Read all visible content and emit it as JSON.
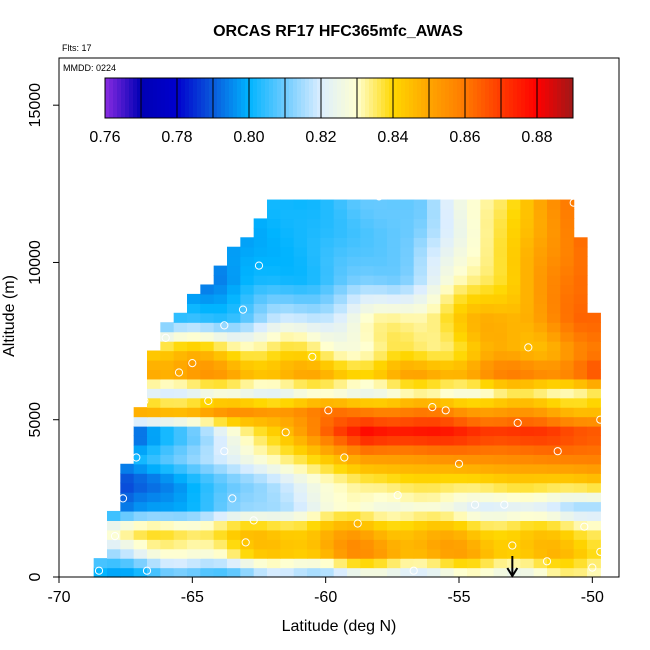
{
  "chart_data": {
    "type": "heatmap",
    "title": "ORCAS RF17 HFC365mfc_AWAS",
    "xlabel": "Latitude (deg N)",
    "ylabel": "Altitude (m)",
    "xlim": [
      -70,
      -49
    ],
    "ylim": [
      0,
      16500
    ],
    "x_ticks": [
      -70,
      -65,
      -60,
      -55,
      -50
    ],
    "y_ticks": [
      0,
      5000,
      10000,
      15000
    ],
    "annotations": {
      "flights": "Flts: 17",
      "date": "MMDD: 0224"
    },
    "colorbar": {
      "range": [
        0.76,
        0.89
      ],
      "ticks": [
        0.76,
        0.78,
        0.8,
        0.82,
        0.84,
        0.86,
        0.88
      ],
      "stops": [
        [
          0.76,
          "#8a2be2"
        ],
        [
          0.77,
          "#0000b4"
        ],
        [
          0.78,
          "#0000cd"
        ],
        [
          0.79,
          "#0a5adc"
        ],
        [
          0.8,
          "#00b4ff"
        ],
        [
          0.81,
          "#6ecbff"
        ],
        [
          0.82,
          "#dceeff"
        ],
        [
          0.83,
          "#ffffd0"
        ],
        [
          0.84,
          "#ffd700"
        ],
        [
          0.85,
          "#ffa500"
        ],
        [
          0.86,
          "#ff7a00"
        ],
        [
          0.87,
          "#ff3a00"
        ],
        [
          0.88,
          "#ff0000"
        ],
        [
          0.89,
          "#a01818"
        ]
      ]
    },
    "field": {
      "lat_range": [
        -68.7,
        -49.6
      ],
      "alt_top": 12000,
      "grid_lat_step": 0.5,
      "grid_alt_step": 300,
      "left_edge": [
        [
          0,
          -68.7
        ],
        [
          2000,
          -68.0
        ],
        [
          4000,
          -67.3
        ],
        [
          6000,
          -66.8
        ],
        [
          7700,
          -66.3
        ],
        [
          9500,
          -64.2
        ],
        [
          12000,
          -62.0
        ]
      ],
      "right_edge": [
        [
          0,
          -49.6
        ],
        [
          5000,
          -49.7
        ],
        [
          9000,
          -50.0
        ],
        [
          12000,
          -50.7
        ]
      ],
      "bands": [
        {
          "alt": 12000,
          "west": 0.8,
          "mid": 0.812,
          "east": 0.86
        },
        {
          "alt": 11000,
          "west": 0.798,
          "mid": 0.81,
          "east": 0.862
        },
        {
          "alt": 9500,
          "west": 0.795,
          "mid": 0.812,
          "east": 0.865
        },
        {
          "alt": 8200,
          "west": 0.8,
          "mid": 0.83,
          "east": 0.862
        },
        {
          "alt": 7200,
          "west": 0.845,
          "mid": 0.83,
          "east": 0.855
        },
        {
          "alt": 6500,
          "west": 0.855,
          "mid": 0.845,
          "east": 0.865
        },
        {
          "alt": 5900,
          "west": 0.82,
          "mid": 0.825,
          "east": 0.835
        },
        {
          "alt": 5300,
          "west": 0.85,
          "mid": 0.86,
          "east": 0.845
        },
        {
          "alt": 4600,
          "west": 0.785,
          "mid": 0.88,
          "east": 0.868
        },
        {
          "alt": 3800,
          "west": 0.8,
          "mid": 0.852,
          "east": 0.86
        },
        {
          "alt": 3000,
          "west": 0.785,
          "mid": 0.835,
          "east": 0.842
        },
        {
          "alt": 2200,
          "west": 0.79,
          "mid": 0.83,
          "east": 0.815
        },
        {
          "alt": 1500,
          "west": 0.835,
          "mid": 0.848,
          "east": 0.838
        },
        {
          "alt": 800,
          "west": 0.818,
          "mid": 0.855,
          "east": 0.842
        },
        {
          "alt": 200,
          "west": 0.8,
          "mid": 0.822,
          "east": 0.832
        }
      ]
    },
    "samples": [
      {
        "lat": -68.5,
        "alt": 200
      },
      {
        "lat": -67.9,
        "alt": 1300
      },
      {
        "lat": -67.6,
        "alt": 2500
      },
      {
        "lat": -67.1,
        "alt": 3800
      },
      {
        "lat": -66.8,
        "alt": 5600
      },
      {
        "lat": -66.0,
        "alt": 7600
      },
      {
        "lat": -65.5,
        "alt": 6500
      },
      {
        "lat": -65.0,
        "alt": 6800
      },
      {
        "lat": -64.4,
        "alt": 5600
      },
      {
        "lat": -63.8,
        "alt": 4000
      },
      {
        "lat": -63.5,
        "alt": 2500
      },
      {
        "lat": -63.0,
        "alt": 1100
      },
      {
        "lat": -62.7,
        "alt": 1800
      },
      {
        "lat": -63.8,
        "alt": 8000
      },
      {
        "lat": -63.1,
        "alt": 8500
      },
      {
        "lat": -62.5,
        "alt": 9900
      },
      {
        "lat": -61.5,
        "alt": 4600
      },
      {
        "lat": -60.5,
        "alt": 7000
      },
      {
        "lat": -59.9,
        "alt": 5300
      },
      {
        "lat": -59.3,
        "alt": 3800
      },
      {
        "lat": -58.8,
        "alt": 1700
      },
      {
        "lat": -58.0,
        "alt": 12100
      },
      {
        "lat": -56.7,
        "alt": 200
      },
      {
        "lat": -57.3,
        "alt": 2600
      },
      {
        "lat": -56.0,
        "alt": 5400
      },
      {
        "lat": -55.5,
        "alt": 5300
      },
      {
        "lat": -55.0,
        "alt": 3600
      },
      {
        "lat": -54.4,
        "alt": 2300
      },
      {
        "lat": -53.3,
        "alt": 2300
      },
      {
        "lat": -53.0,
        "alt": 1000
      },
      {
        "lat": -52.8,
        "alt": 4900
      },
      {
        "lat": -52.4,
        "alt": 7300
      },
      {
        "lat": -51.7,
        "alt": 500
      },
      {
        "lat": -51.3,
        "alt": 4000
      },
      {
        "lat": -50.7,
        "alt": 11900
      },
      {
        "lat": -50.0,
        "alt": 9000
      },
      {
        "lat": -49.9,
        "alt": 8800
      },
      {
        "lat": -49.7,
        "alt": 5000
      },
      {
        "lat": -50.3,
        "alt": 1600
      },
      {
        "lat": -50.0,
        "alt": 300
      },
      {
        "lat": -49.7,
        "alt": 800
      },
      {
        "lat": -66.7,
        "alt": 200
      },
      {
        "lat": -62.8,
        "alt": 12100
      },
      {
        "lat": -57.4,
        "alt": 12200
      }
    ],
    "marker": {
      "lat": -53.0,
      "direction": "down"
    }
  }
}
